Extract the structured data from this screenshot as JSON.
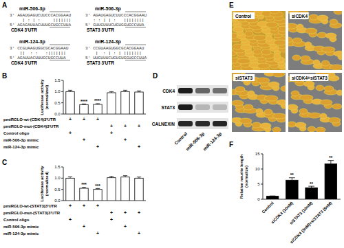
{
  "panel_labels": [
    "A",
    "B",
    "C",
    "D",
    "E",
    "F"
  ],
  "panel_a": {
    "alignments": [
      {
        "mirna": "miR-506-3p",
        "mirna_seq": "3' AGAUGAGUCUUCCCACGGAAU",
        "pairing": "     | : | :     |||||||",
        "target_seq": "5' AGAGAUUACUUUGCUGCCUUA",
        "target": "CDK4 3'UTR"
      },
      {
        "mirna": "miR-506-3p",
        "mirna_seq": "3' AGAUGAGUCUUCCCACGGAAU",
        "pairing": "   : : | | :   ||||||||",
        "target_seq": "5' GUUGUUUCUGUGGUGCCUUA",
        "target": "STAT3 3'UTR"
      },
      {
        "mirna": "miR-124-3p",
        "mirna_seq": "3' CCGUAAGUGGCGCACGGAAU",
        "pairing": "    ||  : :   :|||||||",
        "target_seq": "5' AGAUUACUUUGCUGCCUUA",
        "target": "CDK4 3'UTR"
      },
      {
        "mirna": "miR-124-3p",
        "mirna_seq": "3' CCGUAAGUGGCGCACGGAAU",
        "pairing": "    |  : | : | |||||||",
        "target_seq": "5' UUGUUUCUGUGUGGUGCCUUA",
        "target": "STAT3 3'UTR"
      }
    ]
  },
  "chart_data": [
    {
      "type": "bar",
      "ylabel": [
        "Luciferase activity",
        "(normalized)"
      ],
      "categories": [
        null,
        null,
        null,
        null,
        null,
        null
      ],
      "values": [
        1.0,
        0.42,
        0.43,
        0.95,
        1.0,
        0.98
      ],
      "errors": [
        0.06,
        0.03,
        0.03,
        0.05,
        0.06,
        0.05
      ],
      "significance": [
        null,
        "****",
        "****",
        null,
        null,
        null
      ],
      "color": "#ffffff",
      "ylim": [
        0,
        1.5
      ],
      "yticks": [
        {
          "value": 0,
          "label": "0.0"
        },
        {
          "value": 0.5,
          "label": "0.5"
        },
        {
          "value": 1,
          "label": "1.0"
        },
        {
          "value": 1.5,
          "label": "1.5"
        }
      ],
      "conditions": [
        {
          "label": "pmiRGLO-wt-(CDK4)3'UTR",
          "marks": [
            "+",
            "+",
            "+",
            null,
            null,
            null
          ]
        },
        {
          "label": "pmiRGLO-mut-(CDK4)3'UTR",
          "marks": [
            null,
            null,
            null,
            "+",
            "+",
            "+"
          ]
        },
        {
          "label": "Control oligo",
          "marks": [
            "+",
            null,
            null,
            "+",
            null,
            null
          ]
        },
        {
          "label": "miR-506-3p mimic",
          "marks": [
            null,
            "+",
            null,
            null,
            "+",
            null
          ]
        },
        {
          "label": "miR-124-3p mimic",
          "marks": [
            null,
            null,
            "+",
            null,
            null,
            "+"
          ]
        }
      ]
    },
    {
      "type": "bar",
      "ylabel": [
        "Luciferase activity",
        "(normalized)"
      ],
      "categories": [
        null,
        null,
        null,
        null,
        null,
        null
      ],
      "values": [
        1.0,
        0.55,
        0.5,
        1.02,
        1.05,
        1.0
      ],
      "errors": [
        0.06,
        0.04,
        0.04,
        0.06,
        0.06,
        0.05
      ],
      "significance": [
        null,
        "***",
        "***",
        null,
        null,
        null
      ],
      "color": "#ffffff",
      "ylim": [
        0,
        1.5
      ],
      "yticks": [
        {
          "value": 0,
          "label": "0.0"
        },
        {
          "value": 0.5,
          "label": "0.5"
        },
        {
          "value": 1,
          "label": "1.0"
        },
        {
          "value": 1.5,
          "label": "1.5"
        }
      ],
      "conditions": [
        {
          "label": "pmiRGLO-wt-(STAT3)3'UTR",
          "marks": [
            "+",
            "+",
            "+",
            null,
            null,
            null
          ]
        },
        {
          "label": "pmiRGLO-mut-(STAT3)3'UTR",
          "marks": [
            null,
            null,
            null,
            "+",
            "+",
            "+"
          ]
        },
        {
          "label": "Control oligo",
          "marks": [
            "+",
            null,
            null,
            "+",
            null,
            null
          ]
        },
        {
          "label": "miR-506-3p mimic",
          "marks": [
            null,
            "+",
            null,
            null,
            "+",
            null
          ]
        },
        {
          "label": "miR-124-3p mimic",
          "marks": [
            null,
            null,
            "+",
            null,
            null,
            "+"
          ]
        }
      ]
    },
    {
      "type": "bar",
      "ylabel": [
        "Relative neurite length",
        "(normalize)"
      ],
      "categories": [
        "Control",
        "siCDK4 (10nM)",
        "siSTAT3 (10nM)",
        "siCDK4 (5nM)+siSTAT3 (5nM)"
      ],
      "values": [
        1.0,
        6.3,
        3.8,
        11.7
      ],
      "errors": [
        0.1,
        0.8,
        0.5,
        1.1
      ],
      "significance": [
        null,
        "**",
        "**",
        "**"
      ],
      "color": "#000000",
      "ylim": [
        0,
        15
      ],
      "yticks": [
        0,
        5,
        10,
        15
      ]
    }
  ],
  "panel_d": {
    "rows": [
      "CDK4",
      "STAT3",
      "CALNEXIN"
    ],
    "columns": [
      "Control",
      "miR-506-3p",
      "miR-124-3p"
    ]
  },
  "panel_e": {
    "images": [
      "Control",
      "siCDK4",
      "siSTAT3",
      "siCDK4+siSTAT3"
    ]
  }
}
